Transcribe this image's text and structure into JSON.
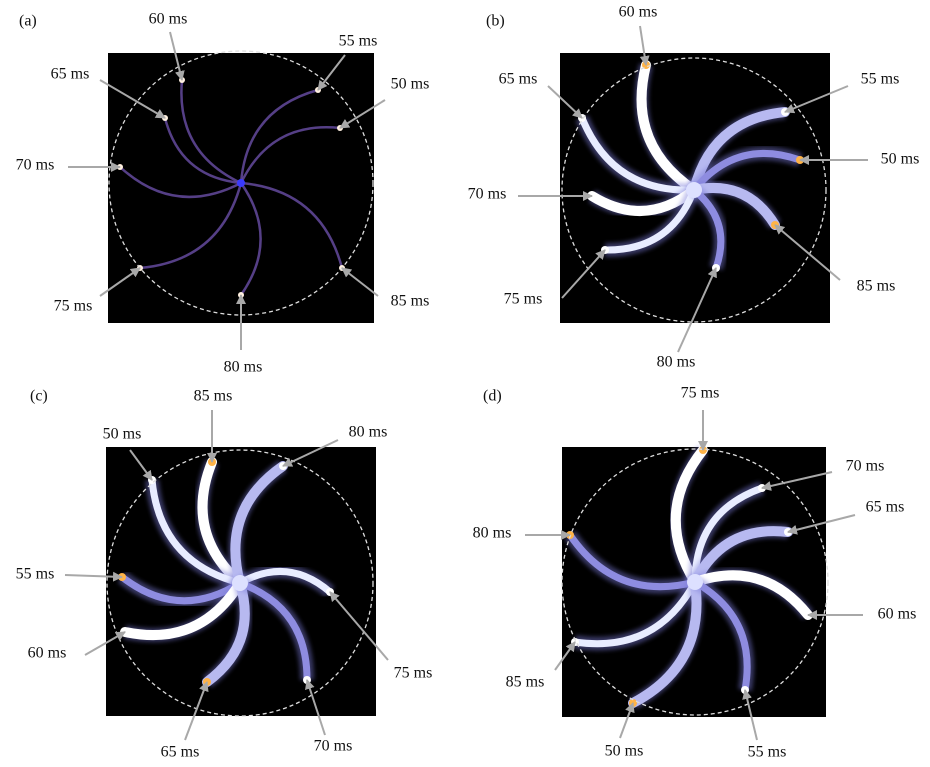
{
  "panels": [
    {
      "label": "(a)",
      "annotations": [
        {
          "text": "60 ms"
        },
        {
          "text": "55 ms"
        },
        {
          "text": "65 ms"
        },
        {
          "text": "50 ms"
        },
        {
          "text": "70 ms"
        },
        {
          "text": "75 ms"
        },
        {
          "text": "85 ms"
        },
        {
          "text": "80 ms"
        }
      ]
    },
    {
      "label": "(b)",
      "annotations": [
        {
          "text": "60 ms"
        },
        {
          "text": "65 ms"
        },
        {
          "text": "55 ms"
        },
        {
          "text": "50 ms"
        },
        {
          "text": "70 ms"
        },
        {
          "text": "75 ms"
        },
        {
          "text": "85 ms"
        },
        {
          "text": "80 ms"
        }
      ]
    },
    {
      "label": "(c)",
      "annotations": [
        {
          "text": "85 ms"
        },
        {
          "text": "50 ms"
        },
        {
          "text": "80 ms"
        },
        {
          "text": "55 ms"
        },
        {
          "text": "60 ms"
        },
        {
          "text": "75 ms"
        },
        {
          "text": "65 ms"
        },
        {
          "text": "70 ms"
        }
      ]
    },
    {
      "label": "(d)",
      "annotations": [
        {
          "text": "75 ms"
        },
        {
          "text": "70 ms"
        },
        {
          "text": "65 ms"
        },
        {
          "text": "80 ms"
        },
        {
          "text": "60 ms"
        },
        {
          "text": "85 ms"
        },
        {
          "text": "50 ms"
        },
        {
          "text": "55 ms"
        }
      ]
    }
  ]
}
